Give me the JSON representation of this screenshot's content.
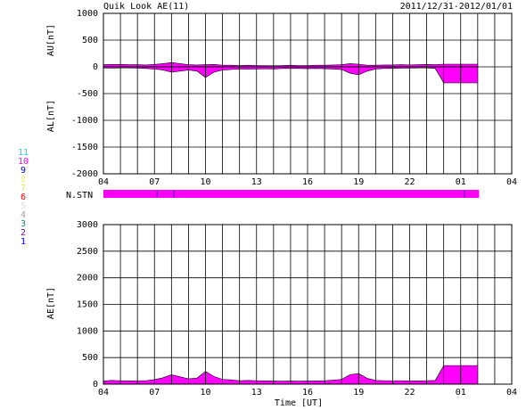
{
  "header": {
    "title": "Quik Look AE(11)",
    "date": "2011/12/31-2012/01/01"
  },
  "station_bar": {
    "label": "N.STN"
  },
  "station_legend": [
    {
      "label": "11",
      "color": "#00e0e0"
    },
    {
      "label": "10",
      "color": "#ff00ff"
    },
    {
      "label": "9",
      "color": "#0000cc"
    },
    {
      "label": "8",
      "color": "#f0f080"
    },
    {
      "label": "7",
      "color": "#d8e860"
    },
    {
      "label": "6",
      "color": "#ff0000"
    },
    {
      "label": "5",
      "color": "#e0e0e0"
    },
    {
      "label": "4",
      "color": "#a0a0a0"
    },
    {
      "label": "3",
      "color": "#009090"
    },
    {
      "label": "2",
      "color": "#800080"
    },
    {
      "label": "1",
      "color": "#0000ff"
    }
  ],
  "chart_data": [
    {
      "type": "area",
      "x": [
        4,
        4.5,
        5,
        5.5,
        6,
        6.5,
        7,
        7.5,
        8,
        8.5,
        9,
        9.5,
        10,
        10.5,
        11,
        11.5,
        12,
        12.5,
        13,
        13.5,
        14,
        14.5,
        15,
        15.5,
        16,
        16.5,
        17,
        17.5,
        18,
        18.5,
        19,
        19.5,
        20,
        20.5,
        21,
        21.5,
        22,
        22.5,
        23,
        23.5,
        24,
        24.5,
        25,
        25.5,
        26
      ],
      "series": [
        {
          "name": "AU[nT]",
          "color": "#ff00ff",
          "values": [
            40,
            45,
            45,
            40,
            40,
            35,
            45,
            60,
            80,
            60,
            40,
            35,
            40,
            45,
            30,
            30,
            25,
            30,
            25,
            25,
            20,
            25,
            30,
            25,
            25,
            30,
            30,
            35,
            40,
            60,
            50,
            30,
            30,
            35,
            35,
            40,
            35,
            40,
            45,
            40,
            50,
            50,
            50,
            50,
            50
          ]
        },
        {
          "name": "AL[nT]",
          "color": "#ff00ff",
          "values": [
            -20,
            -25,
            -20,
            -20,
            -25,
            -30,
            -40,
            -60,
            -100,
            -80,
            -60,
            -80,
            -200,
            -100,
            -60,
            -50,
            -40,
            -40,
            -40,
            -35,
            -40,
            -30,
            -30,
            -30,
            -35,
            -30,
            -35,
            -40,
            -50,
            -120,
            -150,
            -80,
            -40,
            -30,
            -30,
            -25,
            -25,
            -20,
            -20,
            -30,
            -300,
            -300,
            -300,
            -300,
            -300
          ]
        }
      ],
      "xlim": [
        4,
        28
      ],
      "xticks": [
        {
          "value": 4,
          "label": "04"
        },
        {
          "value": 7,
          "label": "07"
        },
        10,
        13,
        16,
        19,
        22,
        {
          "value": 25,
          "label": "01"
        },
        {
          "value": 28,
          "label": "04"
        }
      ],
      "xminor": [
        5,
        6,
        8,
        9,
        11,
        12,
        14,
        15,
        17,
        18,
        20,
        21,
        23,
        24,
        26,
        27
      ],
      "ylim": [
        -2000,
        1000
      ],
      "yticks": [
        -2000,
        -1500,
        -1000,
        -500,
        0,
        500,
        1000
      ],
      "grid": true
    },
    {
      "type": "area",
      "x": [
        4,
        4.5,
        5,
        5.5,
        6,
        6.5,
        7,
        7.5,
        8,
        8.5,
        9,
        9.5,
        10,
        10.5,
        11,
        11.5,
        12,
        12.5,
        13,
        13.5,
        14,
        14.5,
        15,
        15.5,
        16,
        16.5,
        17,
        17.5,
        18,
        18.5,
        19,
        19.5,
        20,
        20.5,
        21,
        21.5,
        22,
        22.5,
        23,
        23.5,
        24,
        24.5,
        25,
        25.5,
        26
      ],
      "series": [
        {
          "name": "AE[nT]",
          "color": "#ff00ff",
          "values": [
            60,
            70,
            65,
            60,
            65,
            65,
            85,
            120,
            180,
            140,
            100,
            115,
            240,
            145,
            90,
            80,
            65,
            70,
            65,
            60,
            60,
            55,
            60,
            55,
            60,
            60,
            65,
            75,
            90,
            180,
            200,
            110,
            70,
            65,
            65,
            65,
            60,
            60,
            65,
            70,
            350,
            350,
            350,
            350,
            350
          ]
        }
      ],
      "xlabel": "Time [UT]",
      "xlim": [
        4,
        28
      ],
      "xticks": [
        {
          "value": 4,
          "label": "04"
        },
        {
          "value": 7,
          "label": "07"
        },
        10,
        13,
        16,
        19,
        22,
        {
          "value": 25,
          "label": "01"
        },
        {
          "value": 28,
          "label": "04"
        }
      ],
      "xminor": [
        5,
        6,
        8,
        9,
        11,
        12,
        14,
        15,
        17,
        18,
        20,
        21,
        23,
        24,
        26,
        27
      ],
      "ylim": [
        0,
        3000
      ],
      "yticks": [
        0,
        500,
        1000,
        1500,
        2000,
        2500,
        3000
      ],
      "grid": true
    }
  ]
}
